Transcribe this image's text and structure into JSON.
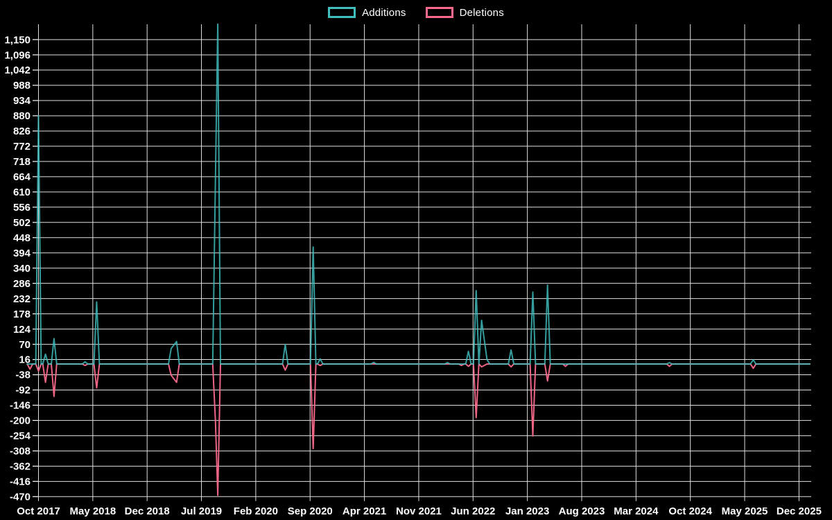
{
  "legend": {
    "items": [
      {
        "label": "Additions",
        "color": "#41bfbf"
      },
      {
        "label": "Deletions",
        "color": "#fa6a8c"
      }
    ],
    "position": "top-center"
  },
  "chart_data": {
    "type": "line",
    "title": "",
    "xlabel": "",
    "ylabel": "",
    "background_color": "#000000",
    "grid": true,
    "grid_color": "#e0e0e0",
    "text_color": "#ffffff",
    "baseline_value": 0,
    "x_axis": {
      "tick_labels": [
        "Oct 2017",
        "May 2018",
        "Dec 2018",
        "Jul 2019",
        "Feb 2020",
        "Sep 2020",
        "Apr 2021",
        "Nov 2021",
        "Jun 2022",
        "Jan 2023",
        "Aug 2023",
        "Mar 2024",
        "Oct 2024",
        "May 2025",
        "Dec 2025"
      ],
      "tick_month_offsets": [
        0,
        7,
        14,
        21,
        28,
        35,
        42,
        49,
        56,
        63,
        70,
        77,
        84,
        91,
        98
      ],
      "range_months": [
        -1.3,
        99.4
      ]
    },
    "y_axis": {
      "min": -470,
      "max": 1204,
      "tick_start": 1150,
      "tick_step": -54,
      "tick_count": 31,
      "tick_labels": [
        "1,150",
        "1,096",
        "1,042",
        "988",
        "934",
        "880",
        "826",
        "772",
        "718",
        "664",
        "610",
        "556",
        "502",
        "448",
        "394",
        "340",
        "286",
        "232",
        "178",
        "124",
        "70",
        "16",
        "-38",
        "-92",
        "-146",
        "-200",
        "-254",
        "-308",
        "-362",
        "-416",
        "-470"
      ]
    },
    "series": [
      {
        "name": "Additions",
        "color": "#41bfbf",
        "key": "additions"
      },
      {
        "name": "Deletions",
        "color": "#fa6a8c",
        "key": "deletions"
      }
    ],
    "events": [
      {
        "month": "Sep 2017",
        "t": -1.1,
        "additions": 0,
        "deletions": -18
      },
      {
        "month": "Oct 2017",
        "t": 0,
        "additions": 880,
        "deletions": -25
      },
      {
        "month": "Nov 2017",
        "t": 0.9,
        "additions": 35,
        "deletions": -65
      },
      {
        "month": "Dec 2017",
        "t": 2,
        "additions": 90,
        "deletions": -115
      },
      {
        "month": "Apr 2018",
        "t": 6,
        "additions": 8,
        "deletions": -5
      },
      {
        "month": "Jun 2018",
        "t": 7.5,
        "additions": 220,
        "deletions": -85
      },
      {
        "month": "Mar 2019",
        "t": 17.1,
        "additions": 55,
        "deletions": -40
      },
      {
        "month": "Apr 2019",
        "t": 17.8,
        "additions": 80,
        "deletions": -65
      },
      {
        "month": "Aug 2019",
        "t": 22.8,
        "additions": 650,
        "deletions": -200
      },
      {
        "month": "Sep 2019",
        "t": 23.1,
        "additions": 1210,
        "deletions": -465
      },
      {
        "month": "Jun 2020",
        "t": 31.8,
        "additions": 70,
        "deletions": -22
      },
      {
        "month": "Sep 2020",
        "t": 35.4,
        "additions": 415,
        "deletions": -300
      },
      {
        "month": "Oct 2020",
        "t": 36.3,
        "additions": 18,
        "deletions": -5
      },
      {
        "month": "Jun 2021",
        "t": 43.2,
        "additions": 6,
        "deletions": 0
      },
      {
        "month": "Feb 2022",
        "t": 52.7,
        "additions": 5,
        "deletions": 0
      },
      {
        "month": "Apr 2022",
        "t": 54.5,
        "additions": 0,
        "deletions": -5
      },
      {
        "month": "May 2022",
        "t": 55.4,
        "additions": 45,
        "deletions": -8
      },
      {
        "month": "Jun 2022",
        "t": 56.4,
        "additions": 260,
        "deletions": -190
      },
      {
        "month": "Jul 2022",
        "t": 57.1,
        "additions": 155,
        "deletions": -10
      },
      {
        "month": "Aug 2022",
        "t": 57.8,
        "additions": 16,
        "deletions": 0
      },
      {
        "month": "Nov 2022",
        "t": 60.9,
        "additions": 50,
        "deletions": -10
      },
      {
        "month": "Jan 2023",
        "t": 63.7,
        "additions": 255,
        "deletions": -255
      },
      {
        "month": "Mar 2023",
        "t": 65.6,
        "additions": 280,
        "deletions": -60
      },
      {
        "month": "May 2023",
        "t": 67.9,
        "additions": 0,
        "deletions": -8
      },
      {
        "month": "Jul 2024",
        "t": 81.3,
        "additions": 5,
        "deletions": -8
      },
      {
        "month": "Jun 2025",
        "t": 92.1,
        "additions": 15,
        "deletions": -15
      }
    ],
    "notes": "t = months after Oct 2017; Sep 2019 additions spike is clipped at the top of the plot (> 1,204)."
  }
}
